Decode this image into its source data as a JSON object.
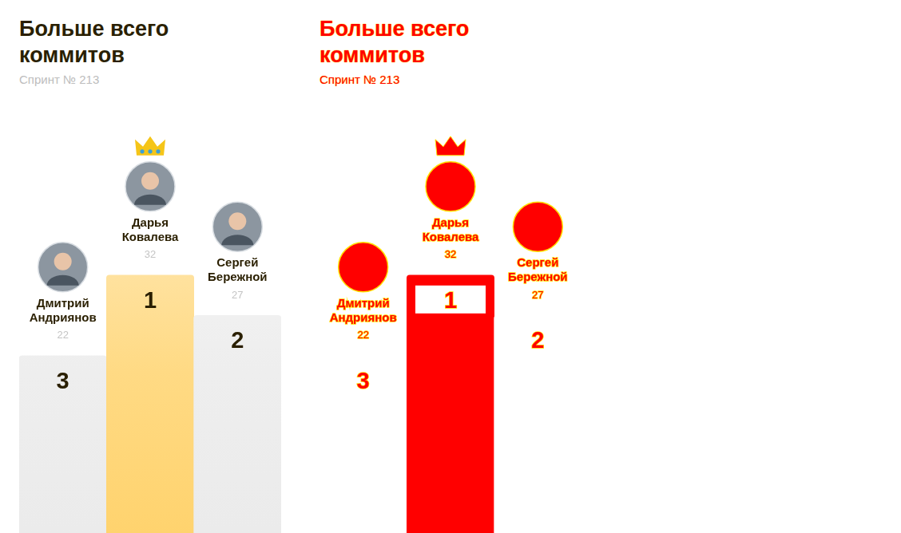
{
  "chart_data": [
    {
      "type": "bar",
      "title": "Больше всего коммитов",
      "subtitle": "Спринт № 213",
      "categories": [
        "Дмитрий Андриянов",
        "Дарья Ковалева",
        "Сергей Бережной"
      ],
      "values": [
        22,
        32,
        27
      ],
      "places": [
        3,
        1,
        2
      ],
      "colors": [
        "#ebebeb",
        "#ffd36e",
        "#ebebeb"
      ],
      "ylim": [
        0,
        50
      ],
      "grid": false,
      "tick_labels": false,
      "data_labels": true
    },
    {
      "type": "bar",
      "title": "Больше всего коммитов",
      "subtitle": "Спринт № 213",
      "categories": [
        "Дмитрий Андриянов",
        "Дарья Ковалева",
        "Сергей Бережной"
      ],
      "values": [
        22,
        32,
        27
      ],
      "places": [
        3,
        1,
        2
      ],
      "colors": [
        "#ffffff",
        "#ff0000",
        "#ffffff"
      ],
      "ylim": [
        0,
        50
      ],
      "grid": false,
      "tick_labels": false,
      "data_labels": true
    }
  ]
}
